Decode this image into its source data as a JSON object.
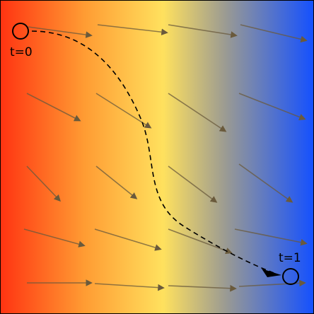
{
  "labels": {
    "start": "t=0",
    "end": "t=1"
  },
  "colors": {
    "gradient": [
      "#ff3311",
      "#ff9c33",
      "#ffe15e",
      "#9a9a93",
      "#1450ff"
    ],
    "arrow": "#6a5a3c",
    "path": "#000000",
    "border": "#000000"
  },
  "icons": {
    "start_marker": "circle-outline",
    "end_marker": "circle-outline",
    "path_arrowhead": "triangle-arrowhead"
  }
}
